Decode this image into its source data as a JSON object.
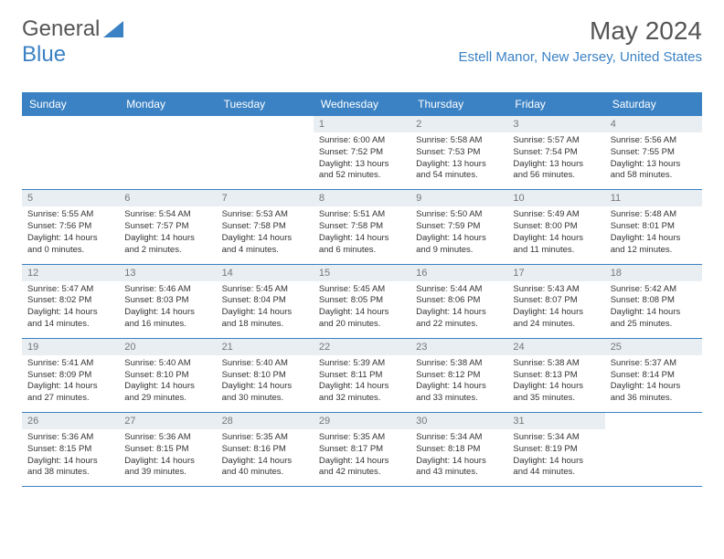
{
  "logo": {
    "text1": "General",
    "text2": "Blue"
  },
  "title": "May 2024",
  "location": "Estell Manor, New Jersey, United States",
  "day_names": [
    "Sunday",
    "Monday",
    "Tuesday",
    "Wednesday",
    "Thursday",
    "Friday",
    "Saturday"
  ],
  "colors": {
    "header_bg": "#3b82c4",
    "daynum_bg": "#e8eef2",
    "text": "#333333",
    "title_text": "#555555"
  },
  "weeks": [
    [
      {
        "day": "",
        "sunrise": "",
        "sunset": "",
        "daylight": ""
      },
      {
        "day": "",
        "sunrise": "",
        "sunset": "",
        "daylight": ""
      },
      {
        "day": "",
        "sunrise": "",
        "sunset": "",
        "daylight": ""
      },
      {
        "day": "1",
        "sunrise": "Sunrise: 6:00 AM",
        "sunset": "Sunset: 7:52 PM",
        "daylight": "Daylight: 13 hours and 52 minutes."
      },
      {
        "day": "2",
        "sunrise": "Sunrise: 5:58 AM",
        "sunset": "Sunset: 7:53 PM",
        "daylight": "Daylight: 13 hours and 54 minutes."
      },
      {
        "day": "3",
        "sunrise": "Sunrise: 5:57 AM",
        "sunset": "Sunset: 7:54 PM",
        "daylight": "Daylight: 13 hours and 56 minutes."
      },
      {
        "day": "4",
        "sunrise": "Sunrise: 5:56 AM",
        "sunset": "Sunset: 7:55 PM",
        "daylight": "Daylight: 13 hours and 58 minutes."
      }
    ],
    [
      {
        "day": "5",
        "sunrise": "Sunrise: 5:55 AM",
        "sunset": "Sunset: 7:56 PM",
        "daylight": "Daylight: 14 hours and 0 minutes."
      },
      {
        "day": "6",
        "sunrise": "Sunrise: 5:54 AM",
        "sunset": "Sunset: 7:57 PM",
        "daylight": "Daylight: 14 hours and 2 minutes."
      },
      {
        "day": "7",
        "sunrise": "Sunrise: 5:53 AM",
        "sunset": "Sunset: 7:58 PM",
        "daylight": "Daylight: 14 hours and 4 minutes."
      },
      {
        "day": "8",
        "sunrise": "Sunrise: 5:51 AM",
        "sunset": "Sunset: 7:58 PM",
        "daylight": "Daylight: 14 hours and 6 minutes."
      },
      {
        "day": "9",
        "sunrise": "Sunrise: 5:50 AM",
        "sunset": "Sunset: 7:59 PM",
        "daylight": "Daylight: 14 hours and 9 minutes."
      },
      {
        "day": "10",
        "sunrise": "Sunrise: 5:49 AM",
        "sunset": "Sunset: 8:00 PM",
        "daylight": "Daylight: 14 hours and 11 minutes."
      },
      {
        "day": "11",
        "sunrise": "Sunrise: 5:48 AM",
        "sunset": "Sunset: 8:01 PM",
        "daylight": "Daylight: 14 hours and 12 minutes."
      }
    ],
    [
      {
        "day": "12",
        "sunrise": "Sunrise: 5:47 AM",
        "sunset": "Sunset: 8:02 PM",
        "daylight": "Daylight: 14 hours and 14 minutes."
      },
      {
        "day": "13",
        "sunrise": "Sunrise: 5:46 AM",
        "sunset": "Sunset: 8:03 PM",
        "daylight": "Daylight: 14 hours and 16 minutes."
      },
      {
        "day": "14",
        "sunrise": "Sunrise: 5:45 AM",
        "sunset": "Sunset: 8:04 PM",
        "daylight": "Daylight: 14 hours and 18 minutes."
      },
      {
        "day": "15",
        "sunrise": "Sunrise: 5:45 AM",
        "sunset": "Sunset: 8:05 PM",
        "daylight": "Daylight: 14 hours and 20 minutes."
      },
      {
        "day": "16",
        "sunrise": "Sunrise: 5:44 AM",
        "sunset": "Sunset: 8:06 PM",
        "daylight": "Daylight: 14 hours and 22 minutes."
      },
      {
        "day": "17",
        "sunrise": "Sunrise: 5:43 AM",
        "sunset": "Sunset: 8:07 PM",
        "daylight": "Daylight: 14 hours and 24 minutes."
      },
      {
        "day": "18",
        "sunrise": "Sunrise: 5:42 AM",
        "sunset": "Sunset: 8:08 PM",
        "daylight": "Daylight: 14 hours and 25 minutes."
      }
    ],
    [
      {
        "day": "19",
        "sunrise": "Sunrise: 5:41 AM",
        "sunset": "Sunset: 8:09 PM",
        "daylight": "Daylight: 14 hours and 27 minutes."
      },
      {
        "day": "20",
        "sunrise": "Sunrise: 5:40 AM",
        "sunset": "Sunset: 8:10 PM",
        "daylight": "Daylight: 14 hours and 29 minutes."
      },
      {
        "day": "21",
        "sunrise": "Sunrise: 5:40 AM",
        "sunset": "Sunset: 8:10 PM",
        "daylight": "Daylight: 14 hours and 30 minutes."
      },
      {
        "day": "22",
        "sunrise": "Sunrise: 5:39 AM",
        "sunset": "Sunset: 8:11 PM",
        "daylight": "Daylight: 14 hours and 32 minutes."
      },
      {
        "day": "23",
        "sunrise": "Sunrise: 5:38 AM",
        "sunset": "Sunset: 8:12 PM",
        "daylight": "Daylight: 14 hours and 33 minutes."
      },
      {
        "day": "24",
        "sunrise": "Sunrise: 5:38 AM",
        "sunset": "Sunset: 8:13 PM",
        "daylight": "Daylight: 14 hours and 35 minutes."
      },
      {
        "day": "25",
        "sunrise": "Sunrise: 5:37 AM",
        "sunset": "Sunset: 8:14 PM",
        "daylight": "Daylight: 14 hours and 36 minutes."
      }
    ],
    [
      {
        "day": "26",
        "sunrise": "Sunrise: 5:36 AM",
        "sunset": "Sunset: 8:15 PM",
        "daylight": "Daylight: 14 hours and 38 minutes."
      },
      {
        "day": "27",
        "sunrise": "Sunrise: 5:36 AM",
        "sunset": "Sunset: 8:15 PM",
        "daylight": "Daylight: 14 hours and 39 minutes."
      },
      {
        "day": "28",
        "sunrise": "Sunrise: 5:35 AM",
        "sunset": "Sunset: 8:16 PM",
        "daylight": "Daylight: 14 hours and 40 minutes."
      },
      {
        "day": "29",
        "sunrise": "Sunrise: 5:35 AM",
        "sunset": "Sunset: 8:17 PM",
        "daylight": "Daylight: 14 hours and 42 minutes."
      },
      {
        "day": "30",
        "sunrise": "Sunrise: 5:34 AM",
        "sunset": "Sunset: 8:18 PM",
        "daylight": "Daylight: 14 hours and 43 minutes."
      },
      {
        "day": "31",
        "sunrise": "Sunrise: 5:34 AM",
        "sunset": "Sunset: 8:19 PM",
        "daylight": "Daylight: 14 hours and 44 minutes."
      },
      {
        "day": "",
        "sunrise": "",
        "sunset": "",
        "daylight": ""
      }
    ]
  ]
}
